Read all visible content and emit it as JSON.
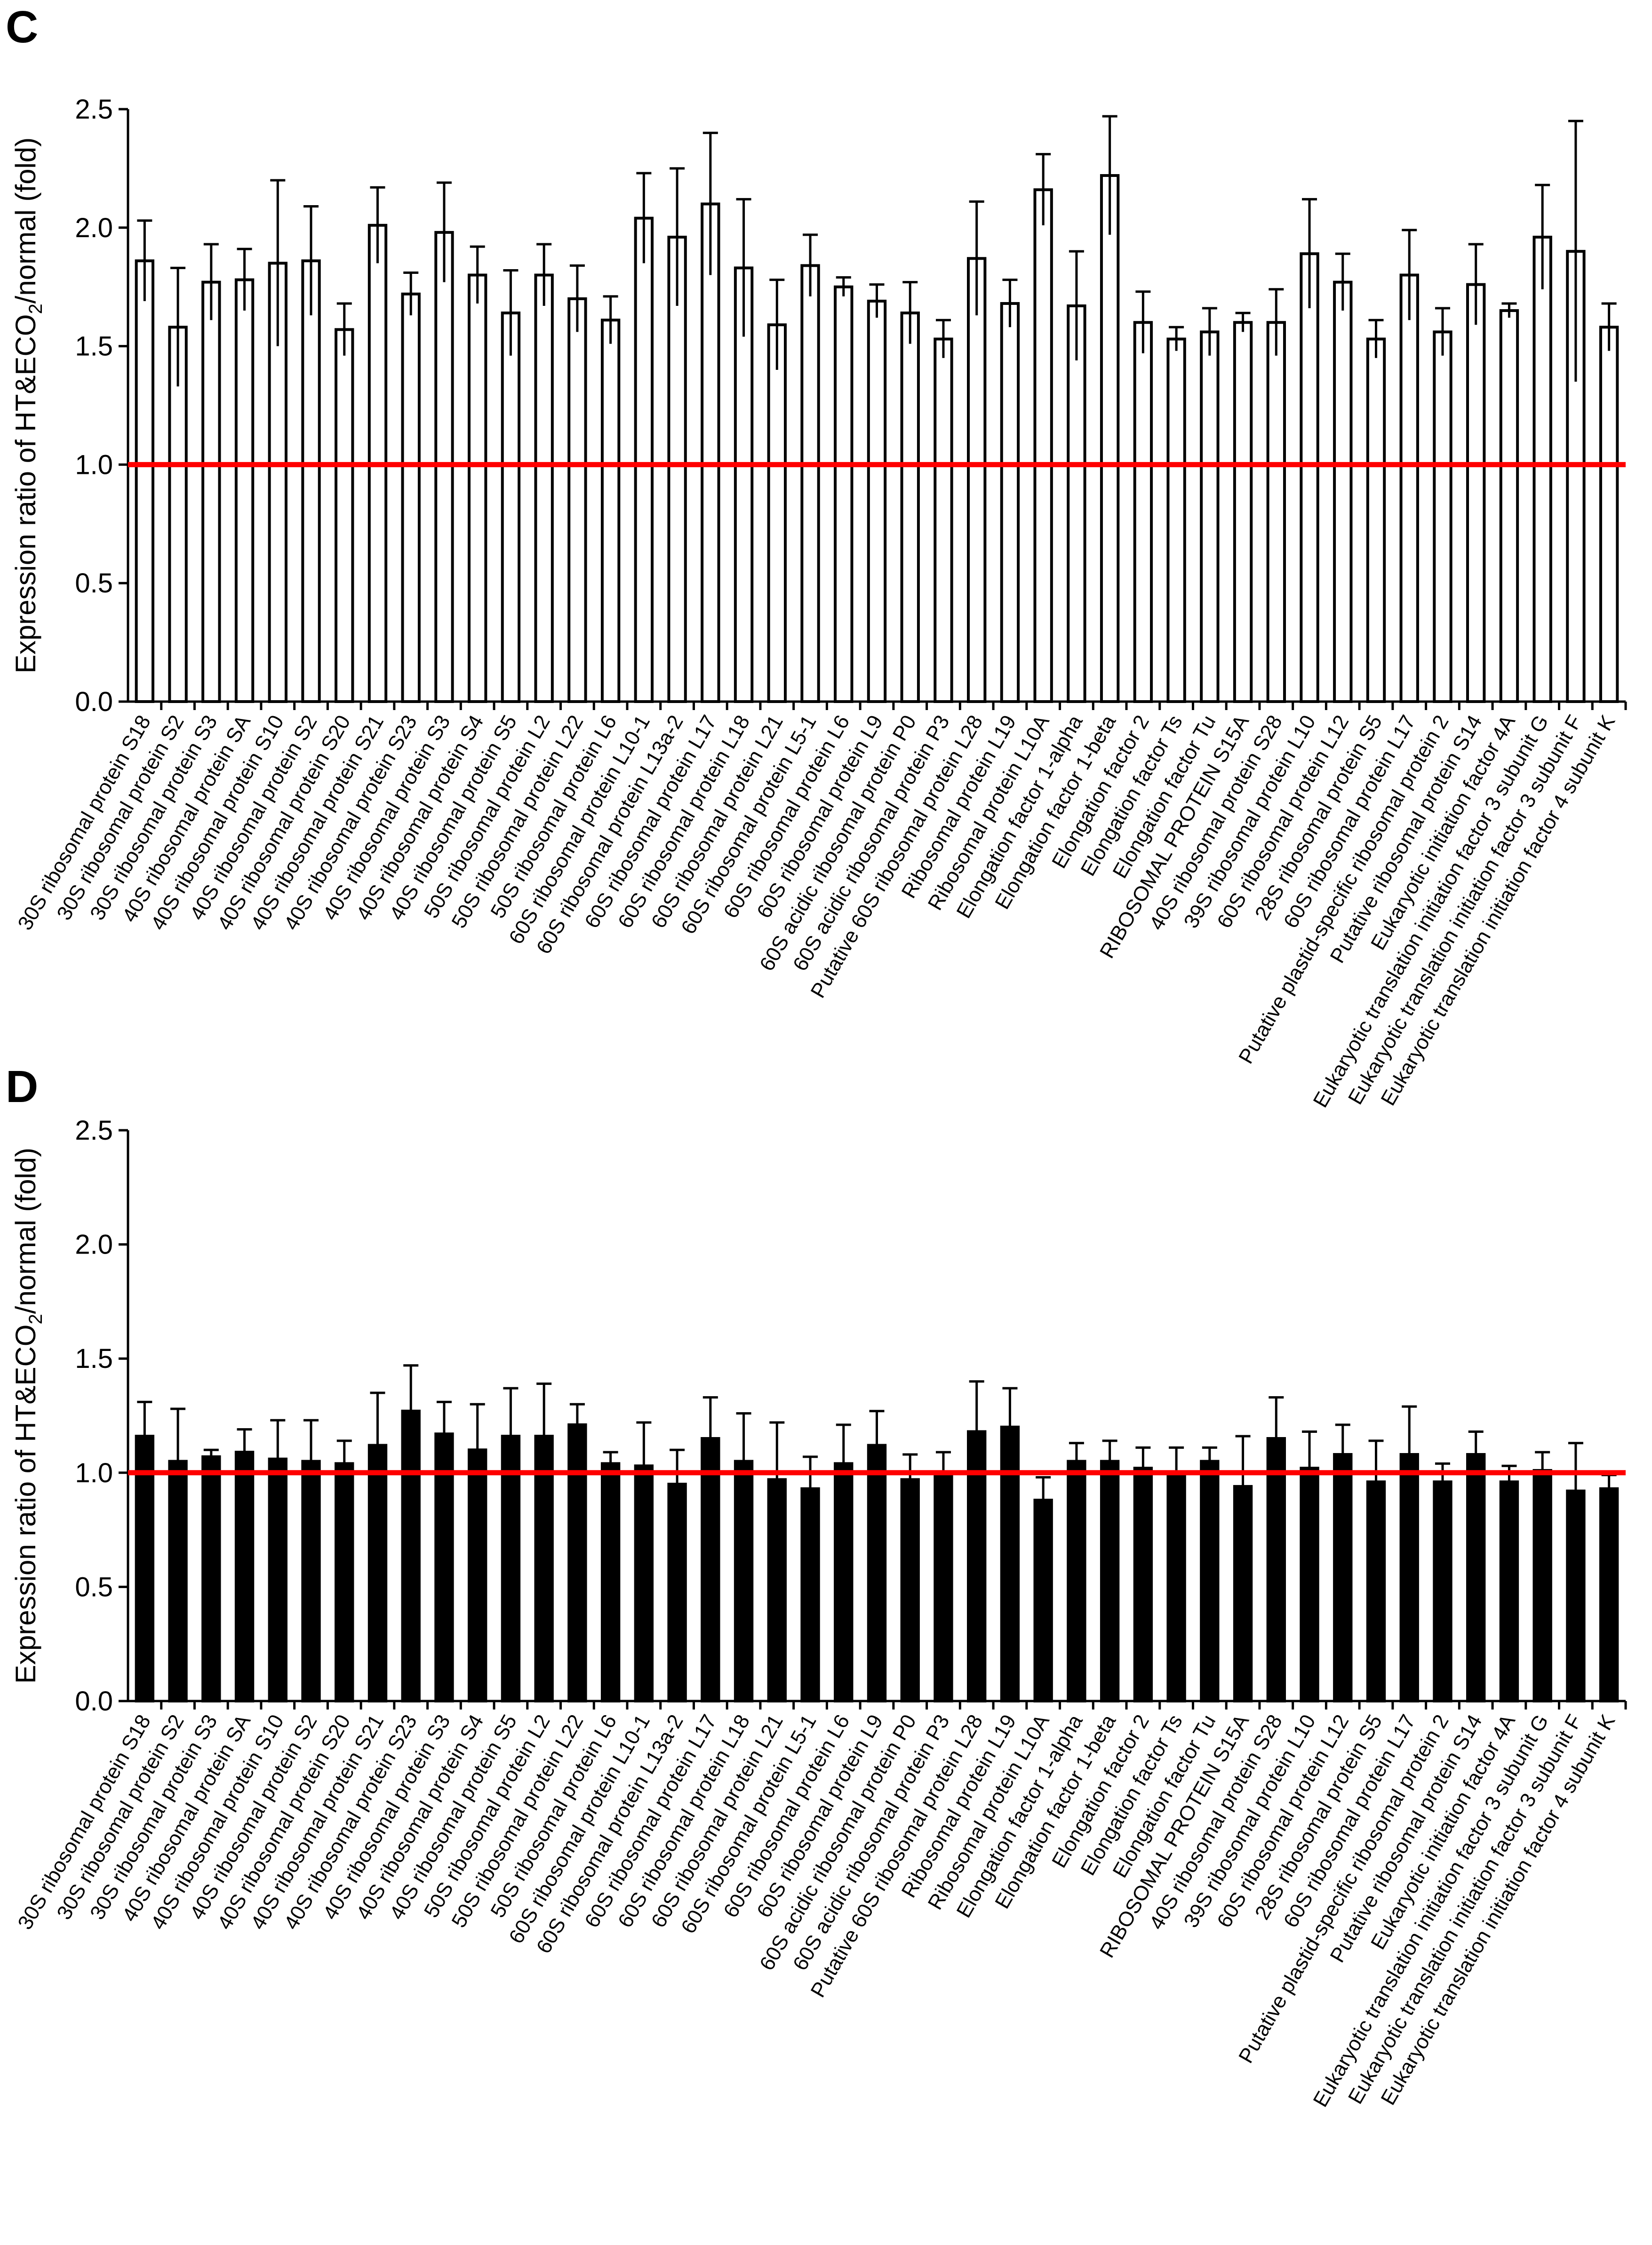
{
  "figure": {
    "panel_c_label": "C",
    "panel_d_label": "D"
  },
  "colors": {
    "bar_c_fill": "#ffffff",
    "bar_d_fill": "#000000",
    "axis": "#000000",
    "reference_line": "#ff0000"
  },
  "chart_data": [
    {
      "type": "bar",
      "panel": "C",
      "title": "",
      "xlabel": "",
      "ylabel": "Expression ratio of HT&ECO2/normal (fold)",
      "ylabel_parts": {
        "before": "Expression ratio of HT&ECO",
        "sub": "2",
        "after": "/normal (fold)"
      },
      "ylim": [
        0,
        2.5
      ],
      "yticks": [
        "0.0",
        "0.5",
        "1.0",
        "1.5",
        "2.0",
        "2.5"
      ],
      "reference_line": 1.0,
      "categories": [
        "30S ribosomal protein S18",
        "30S ribosomal protein S2",
        "30S ribosomal protein S3",
        "40S ribosomal protein  SA",
        "40S ribosomal protein S10",
        "40S ribosomal protein S2",
        "40S ribosomal protein S20",
        "40S ribosomal protein S21",
        "40S ribosomal protein S23",
        "40S ribosomal protein S3",
        "40S ribosomal protein S4",
        "40S ribosomal protein S5",
        "50S ribosomal protein L2",
        "50S ribosomal protein L22",
        "50S ribosomal protein L6",
        "60S ribosomal protein L10-1",
        "60S ribosomal protein L13a-2",
        "60S ribosomal protein L17",
        "60S ribosomal protein L18",
        "60S ribosomal protein L21",
        "60S ribosomal protein L5-1",
        "60S ribosomal protein L6",
        "60S ribosomal protein L9",
        "60S acidic ribosomal protein P0",
        "60S acidic ribosomal protein P3",
        "Putative 60S  ribosomal protein L28",
        "Ribosomal protein L19",
        "Ribosomal protein L10A",
        "Elongation factor 1-alpha",
        "Elongation factor 1-beta",
        "Elongation factor 2",
        "Elongation factor Ts",
        "Elongation factor Tu",
        "RIBOSOMAL PROTEIN S15A",
        "40S ribosomal protein S28",
        "39S ribosomal protein L10",
        "60S ribosomal protein L12",
        "28S ribosomal protein S5",
        "60S ribosomal protein L17",
        "Putative plastid-specific ribosomal protein 2",
        "Putative ribosomal protein S14",
        "Eukaryotic initiation factor 4A",
        "Eukaryotic translation initiation factor 3 subunit G",
        "Eukaryotic translation initiation factor 3 subunit F",
        "Eukaryotic translation initiation factor 4 subunit K"
      ],
      "values": [
        1.86,
        1.58,
        1.77,
        1.78,
        1.85,
        1.86,
        1.57,
        2.01,
        1.72,
        1.98,
        1.8,
        1.64,
        1.8,
        1.7,
        1.61,
        2.04,
        1.96,
        2.1,
        1.83,
        1.59,
        1.84,
        1.75,
        1.69,
        1.64,
        1.53,
        1.87,
        1.68,
        2.16,
        1.67,
        2.22,
        1.6,
        1.53,
        1.56,
        1.6,
        1.6,
        1.89,
        1.77,
        1.53,
        1.8,
        1.56,
        1.76,
        1.65,
        1.96,
        1.9,
        1.58
      ],
      "errors": [
        0.17,
        0.25,
        0.16,
        0.13,
        0.35,
        0.23,
        0.11,
        0.16,
        0.09,
        0.21,
        0.12,
        0.18,
        0.13,
        0.14,
        0.1,
        0.19,
        0.29,
        0.3,
        0.29,
        0.19,
        0.13,
        0.04,
        0.07,
        0.13,
        0.08,
        0.24,
        0.1,
        0.15,
        0.23,
        0.25,
        0.13,
        0.05,
        0.1,
        0.04,
        0.14,
        0.23,
        0.12,
        0.08,
        0.19,
        0.1,
        0.17,
        0.03,
        0.22,
        0.55,
        0.1
      ]
    },
    {
      "type": "bar",
      "panel": "D",
      "title": "",
      "xlabel": "",
      "ylabel": "Expression ratio of HT&ECO2/normal (fold)",
      "ylabel_parts": {
        "before": "Expression ratio of HT&ECO",
        "sub": "2",
        "after": "/normal (fold)"
      },
      "ylim": [
        0,
        2.5
      ],
      "yticks": [
        "0.0",
        "0.5",
        "1.0",
        "1.5",
        "2.0",
        "2.5"
      ],
      "reference_line": 1.0,
      "categories": [
        "30S ribosomal protein S18",
        "30S ribosomal protein S2",
        "30S ribosomal protein S3",
        "40S ribosomal protein  SA",
        "40S ribosomal protein S10",
        "40S ribosomal protein S2",
        "40S ribosomal protein S20",
        "40S ribosomal protein S21",
        "40S ribosomal protein S23",
        "40S ribosomal protein S3",
        "40S ribosomal protein S4",
        "40S ribosomal protein S5",
        "50S ribosomal protein L2",
        "50S ribosomal protein L22",
        "50S ribosomal protein L6",
        "60S ribosomal protein L10-1",
        "60S ribosomal protein L13a-2",
        "60S ribosomal protein L17",
        "60S ribosomal protein L18",
        "60S ribosomal protein L21",
        "60S ribosomal protein L5-1",
        "60S ribosomal protein L6",
        "60S ribosomal protein L9",
        "60S acidic ribosomal protein P0",
        "60S acidic ribosomal protein P3",
        "Putative 60S  ribosomal protein L28",
        "Ribosomal protein L19",
        "Ribosomal protein L10A",
        "Elongation factor 1-alpha",
        "Elongation factor 1-beta",
        "Elongation factor 2",
        "Elongation factor Ts",
        "Elongation factor Tu",
        "RIBOSOMAL PROTEIN S15A",
        "40S ribosomal protein S28",
        "39S ribosomal protein L10",
        "60S ribosomal protein L12",
        "28S ribosomal protein S5",
        "60S ribosomal protein L17",
        "Putative plastid-specific ribosomal protein 2",
        "Putative ribosomal protein S14",
        "Eukaryotic initiation factor 4A",
        "Eukaryotic translation initiation factor 3 subunit G",
        "Eukaryotic translation initiation factor 3 subunit F",
        "Eukaryotic translation initiation factor 4 subunit K"
      ],
      "values": [
        1.16,
        1.05,
        1.07,
        1.09,
        1.06,
        1.05,
        1.04,
        1.12,
        1.27,
        1.17,
        1.1,
        1.16,
        1.16,
        1.21,
        1.04,
        1.03,
        0.95,
        1.15,
        1.05,
        0.97,
        0.93,
        1.04,
        1.12,
        0.97,
        0.99,
        1.18,
        1.2,
        0.88,
        1.05,
        1.05,
        1.02,
        1.0,
        1.05,
        0.94,
        1.15,
        1.02,
        1.08,
        0.96,
        1.08,
        0.96,
        1.08,
        0.96,
        1.01,
        0.92,
        0.93
      ],
      "errors": [
        0.15,
        0.23,
        0.03,
        0.1,
        0.17,
        0.18,
        0.1,
        0.23,
        0.2,
        0.14,
        0.2,
        0.21,
        0.23,
        0.09,
        0.05,
        0.19,
        0.15,
        0.18,
        0.21,
        0.25,
        0.14,
        0.17,
        0.15,
        0.11,
        0.1,
        0.22,
        0.17,
        0.1,
        0.08,
        0.09,
        0.09,
        0.11,
        0.06,
        0.22,
        0.18,
        0.16,
        0.13,
        0.18,
        0.21,
        0.08,
        0.1,
        0.07,
        0.08,
        0.21,
        0.06
      ]
    }
  ]
}
